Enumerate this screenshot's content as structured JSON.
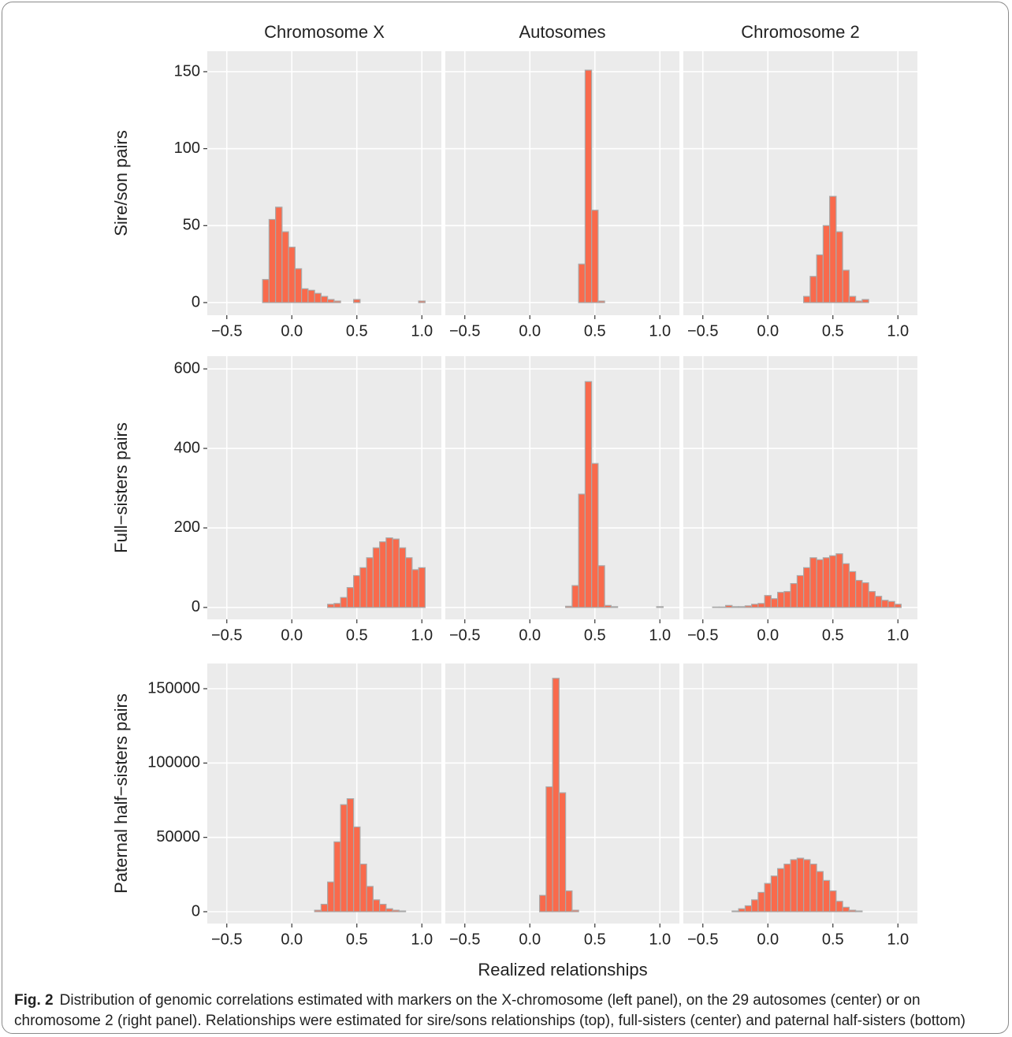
{
  "chart_data": [
    {
      "type": "histogram",
      "title": "Chromosome X",
      "y_label": "Sire/son pairs",
      "color": "#f96a4c",
      "edgecolor": "#a9a9a9",
      "grid": true,
      "bins": [
        -0.525,
        -0.475,
        -0.425,
        -0.375,
        -0.325,
        -0.275,
        -0.225,
        -0.175,
        -0.125,
        -0.075,
        -0.025,
        0.025,
        0.075,
        0.125,
        0.175,
        0.225,
        0.275,
        0.325,
        0.375,
        0.425,
        0.475,
        0.525,
        0.575,
        0.625,
        0.675,
        0.725,
        0.775,
        0.825,
        0.875,
        0.925,
        0.975,
        1.025
      ],
      "values": [
        0,
        0,
        0,
        0,
        0,
        0,
        15,
        54,
        62,
        46,
        36,
        22,
        9,
        8,
        6,
        4,
        2,
        1,
        0,
        0,
        2,
        0,
        0,
        0,
        0,
        0,
        0,
        0,
        0,
        0,
        1
      ],
      "xlim": [
        -0.65,
        1.15
      ],
      "ylim": [
        -8.2,
        163.3
      ],
      "xticks": [
        {
          "value": -0.5,
          "label": "−0.5"
        },
        {
          "value": 0,
          "label": "0.0"
        },
        {
          "value": 0.5,
          "label": "0.5"
        },
        {
          "value": 1,
          "label": "1.0"
        }
      ],
      "yticks": [
        0,
        50,
        100,
        150
      ]
    },
    {
      "type": "histogram",
      "title": "Autosomes",
      "color": "#f96a4c",
      "edgecolor": "#a9a9a9",
      "grid": true,
      "bins": [
        -0.525,
        -0.475,
        -0.425,
        -0.375,
        -0.325,
        -0.275,
        -0.225,
        -0.175,
        -0.125,
        -0.075,
        -0.025,
        0.025,
        0.075,
        0.125,
        0.175,
        0.225,
        0.275,
        0.325,
        0.375,
        0.425,
        0.475,
        0.525,
        0.575,
        0.625,
        0.675,
        0.725,
        0.775,
        0.825,
        0.875,
        0.925,
        0.975,
        1.025
      ],
      "values": [
        0,
        0,
        0,
        0,
        0,
        0,
        0,
        0,
        0,
        0,
        0,
        0,
        0,
        0,
        0,
        0,
        0,
        0,
        25,
        151,
        60,
        1,
        0,
        0,
        0,
        0,
        0,
        0,
        0,
        0,
        0
      ],
      "xlim": [
        -0.65,
        1.15
      ],
      "ylim": [
        -8.2,
        163.3
      ],
      "xticks": [
        {
          "value": -0.5,
          "label": "−0.5"
        },
        {
          "value": 0,
          "label": "0.0"
        },
        {
          "value": 0.5,
          "label": "0.5"
        },
        {
          "value": 1,
          "label": "1.0"
        }
      ],
      "yticks": [
        0,
        50,
        100,
        150
      ]
    },
    {
      "type": "histogram",
      "title": "Chromosome 2",
      "color": "#f96a4c",
      "edgecolor": "#a9a9a9",
      "grid": true,
      "bins": [
        -0.525,
        -0.475,
        -0.425,
        -0.375,
        -0.325,
        -0.275,
        -0.225,
        -0.175,
        -0.125,
        -0.075,
        -0.025,
        0.025,
        0.075,
        0.125,
        0.175,
        0.225,
        0.275,
        0.325,
        0.375,
        0.425,
        0.475,
        0.525,
        0.575,
        0.625,
        0.675,
        0.725,
        0.775,
        0.825,
        0.875,
        0.925,
        0.975,
        1.025
      ],
      "values": [
        0,
        0,
        0,
        0,
        0,
        0,
        0,
        0,
        0,
        0,
        0,
        0,
        0,
        0,
        0,
        0,
        4,
        17,
        31,
        50,
        69,
        46,
        21,
        4,
        1,
        2,
        0,
        0,
        0,
        0,
        0
      ],
      "xlim": [
        -0.65,
        1.15
      ],
      "ylim": [
        -8.2,
        163.3
      ],
      "xticks": [
        {
          "value": -0.5,
          "label": "−0.5"
        },
        {
          "value": 0,
          "label": "0.0"
        },
        {
          "value": 0.5,
          "label": "0.5"
        },
        {
          "value": 1,
          "label": "1.0"
        }
      ],
      "yticks": [
        0,
        50,
        100,
        150
      ]
    },
    {
      "type": "histogram",
      "y_label": "Full−sisters pairs",
      "color": "#f96a4c",
      "edgecolor": "#a9a9a9",
      "grid": true,
      "bins": [
        -0.525,
        -0.475,
        -0.425,
        -0.375,
        -0.325,
        -0.275,
        -0.225,
        -0.175,
        -0.125,
        -0.075,
        -0.025,
        0.025,
        0.075,
        0.125,
        0.175,
        0.225,
        0.275,
        0.325,
        0.375,
        0.425,
        0.475,
        0.525,
        0.575,
        0.625,
        0.675,
        0.725,
        0.775,
        0.825,
        0.875,
        0.925,
        0.975,
        1.025
      ],
      "values": [
        0,
        0,
        0,
        0,
        0,
        0,
        0,
        0,
        0,
        0,
        0,
        0,
        0,
        0,
        0,
        0,
        8,
        10,
        25,
        50,
        80,
        100,
        125,
        150,
        165,
        175,
        172,
        150,
        125,
        95,
        100
      ],
      "xlim": [
        -0.65,
        1.15
      ],
      "ylim": [
        -30,
        632
      ],
      "xticks": [
        {
          "value": -0.5,
          "label": "−0.5"
        },
        {
          "value": 0,
          "label": "0.0"
        },
        {
          "value": 0.5,
          "label": "0.5"
        },
        {
          "value": 1,
          "label": "1.0"
        }
      ],
      "yticks": [
        0,
        200,
        400,
        600
      ]
    },
    {
      "type": "histogram",
      "color": "#f96a4c",
      "edgecolor": "#a9a9a9",
      "grid": true,
      "bins": [
        -0.525,
        -0.475,
        -0.425,
        -0.375,
        -0.325,
        -0.275,
        -0.225,
        -0.175,
        -0.125,
        -0.075,
        -0.025,
        0.025,
        0.075,
        0.125,
        0.175,
        0.225,
        0.275,
        0.325,
        0.375,
        0.425,
        0.475,
        0.525,
        0.575,
        0.625,
        0.675,
        0.725,
        0.775,
        0.825,
        0.875,
        0.925,
        0.975,
        1.025
      ],
      "values": [
        0,
        0,
        0,
        0,
        0,
        0,
        0,
        0,
        0,
        0,
        0,
        0,
        0,
        0,
        0,
        0,
        3,
        55,
        285,
        568,
        362,
        105,
        5,
        2,
        0,
        0,
        0,
        0,
        0,
        0,
        2
      ],
      "xlim": [
        -0.65,
        1.15
      ],
      "ylim": [
        -30,
        632
      ],
      "xticks": [
        {
          "value": -0.5,
          "label": "−0.5"
        },
        {
          "value": 0,
          "label": "0.0"
        },
        {
          "value": 0.5,
          "label": "0.5"
        },
        {
          "value": 1,
          "label": "1.0"
        }
      ],
      "yticks": [
        0,
        200,
        400,
        600
      ]
    },
    {
      "type": "histogram",
      "color": "#f96a4c",
      "edgecolor": "#a9a9a9",
      "grid": true,
      "bins": [
        -0.525,
        -0.475,
        -0.425,
        -0.375,
        -0.325,
        -0.275,
        -0.225,
        -0.175,
        -0.125,
        -0.075,
        -0.025,
        0.025,
        0.075,
        0.125,
        0.175,
        0.225,
        0.275,
        0.325,
        0.375,
        0.425,
        0.475,
        0.525,
        0.575,
        0.625,
        0.675,
        0.725,
        0.775,
        0.825,
        0.875,
        0.925,
        0.975,
        1.025
      ],
      "values": [
        0,
        0,
        1,
        1,
        5,
        2,
        2,
        4,
        8,
        10,
        30,
        22,
        38,
        40,
        60,
        80,
        100,
        125,
        120,
        125,
        130,
        135,
        110,
        90,
        68,
        62,
        40,
        28,
        18,
        15,
        8
      ],
      "xlim": [
        -0.65,
        1.15
      ],
      "ylim": [
        -30,
        632
      ],
      "xticks": [
        {
          "value": -0.5,
          "label": "−0.5"
        },
        {
          "value": 0,
          "label": "0.0"
        },
        {
          "value": 0.5,
          "label": "0.5"
        },
        {
          "value": 1,
          "label": "1.0"
        }
      ],
      "yticks": [
        0,
        200,
        400,
        600
      ]
    },
    {
      "type": "histogram",
      "y_label": "Paternal half−sisters pairs",
      "color": "#f96a4c",
      "edgecolor": "#a9a9a9",
      "grid": true,
      "bins": [
        -0.525,
        -0.475,
        -0.425,
        -0.375,
        -0.325,
        -0.275,
        -0.225,
        -0.175,
        -0.125,
        -0.075,
        -0.025,
        0.025,
        0.075,
        0.125,
        0.175,
        0.225,
        0.275,
        0.325,
        0.375,
        0.425,
        0.475,
        0.525,
        0.575,
        0.625,
        0.675,
        0.725,
        0.775,
        0.825,
        0.875,
        0.925,
        0.975,
        1.025
      ],
      "values": [
        0,
        0,
        0,
        0,
        0,
        0,
        0,
        0,
        0,
        0,
        0,
        0,
        0,
        0,
        1000,
        5000,
        20000,
        47000,
        72000,
        76000,
        57000,
        32000,
        17000,
        8000,
        5000,
        2000,
        1000,
        500,
        0,
        0,
        0
      ],
      "xlim": [
        -0.65,
        1.15
      ],
      "ylim": [
        -7950,
        166960
      ],
      "xticks": [
        {
          "value": -0.5,
          "label": "−0.5"
        },
        {
          "value": 0,
          "label": "0.0"
        },
        {
          "value": 0.5,
          "label": "0.5"
        },
        {
          "value": 1,
          "label": "1.0"
        }
      ],
      "yticks": [
        0,
        50000,
        100000,
        150000
      ]
    },
    {
      "type": "histogram",
      "color": "#f96a4c",
      "edgecolor": "#a9a9a9",
      "grid": true,
      "bins": [
        -0.525,
        -0.475,
        -0.425,
        -0.375,
        -0.325,
        -0.275,
        -0.225,
        -0.175,
        -0.125,
        -0.075,
        -0.025,
        0.025,
        0.075,
        0.125,
        0.175,
        0.225,
        0.275,
        0.325,
        0.375,
        0.425,
        0.475,
        0.525,
        0.575,
        0.625,
        0.675,
        0.725,
        0.775,
        0.825,
        0.875,
        0.925,
        0.975,
        1.025
      ],
      "values": [
        0,
        0,
        0,
        0,
        0,
        0,
        0,
        0,
        0,
        0,
        0,
        0,
        11000,
        84000,
        157000,
        80000,
        14000,
        1000,
        0,
        0,
        0,
        0,
        0,
        0,
        0,
        0,
        0,
        0,
        0,
        0,
        0
      ],
      "xlim": [
        -0.65,
        1.15
      ],
      "ylim": [
        -7950,
        166960
      ],
      "xticks": [
        {
          "value": -0.5,
          "label": "−0.5"
        },
        {
          "value": 0,
          "label": "0.0"
        },
        {
          "value": 0.5,
          "label": "0.5"
        },
        {
          "value": 1,
          "label": "1.0"
        }
      ],
      "yticks": [
        0,
        50000,
        100000,
        150000
      ]
    },
    {
      "type": "histogram",
      "color": "#f96a4c",
      "edgecolor": "#a9a9a9",
      "grid": true,
      "bins": [
        -0.525,
        -0.475,
        -0.425,
        -0.375,
        -0.325,
        -0.275,
        -0.225,
        -0.175,
        -0.125,
        -0.075,
        -0.025,
        0.025,
        0.075,
        0.125,
        0.175,
        0.225,
        0.275,
        0.325,
        0.375,
        0.425,
        0.475,
        0.525,
        0.575,
        0.625,
        0.675,
        0.725,
        0.775,
        0.825,
        0.875,
        0.925,
        0.975,
        1.025
      ],
      "values": [
        0,
        0,
        0,
        0,
        0,
        500,
        2000,
        4000,
        8000,
        13000,
        19000,
        24000,
        29000,
        32000,
        35000,
        36000,
        35000,
        32000,
        27000,
        21000,
        14000,
        7000,
        3000,
        1000,
        500,
        0,
        0,
        0,
        0,
        0,
        0
      ],
      "xlim": [
        -0.65,
        1.15
      ],
      "ylim": [
        -7950,
        166960
      ],
      "xticks": [
        {
          "value": -0.5,
          "label": "−0.5"
        },
        {
          "value": 0,
          "label": "0.0"
        },
        {
          "value": 0.5,
          "label": "0.5"
        },
        {
          "value": 1,
          "label": "1.0"
        }
      ],
      "yticks": [
        0,
        50000,
        100000,
        150000
      ]
    }
  ],
  "x_label": "Realized relationships",
  "caption": {
    "label": "Fig. 2",
    "text": "Distribution of genomic correlations estimated with markers on the X-chromosome (left panel), on the 29 autosomes (center) or on chromosome 2 (right panel). Relationships were estimated for sire/sons relationships (top), full-sisters (center) and paternal half-sisters (bottom)"
  }
}
